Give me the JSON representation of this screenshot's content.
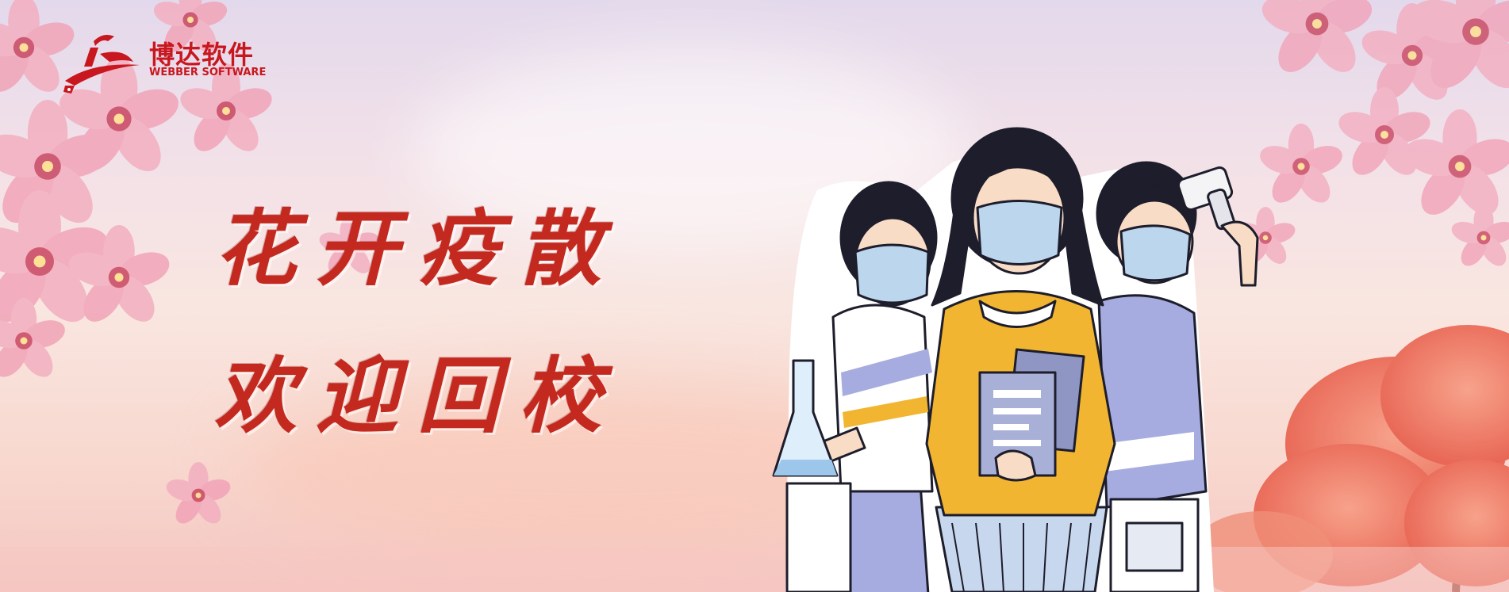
{
  "logo": {
    "name_cn": "博达软件",
    "name_en": "WEBBER SOFTWARE"
  },
  "headline": {
    "line1": "花开疫散",
    "line2": "欢迎回校"
  },
  "palette": {
    "brand_red": "#c8171e",
    "title_red": "#c4291f",
    "sky_top": "#e3d9ec",
    "sky_bottom": "#f4c6c2",
    "blossom_pink": "#f2a9bd",
    "sweater_yellow": "#f1b531",
    "sweater_lavender": "#a6acdf",
    "mask_blue": "#bcd6ee"
  },
  "icons": [
    "blossom-icon",
    "thermometer-gun-icon",
    "document-icon",
    "flask-icon"
  ]
}
